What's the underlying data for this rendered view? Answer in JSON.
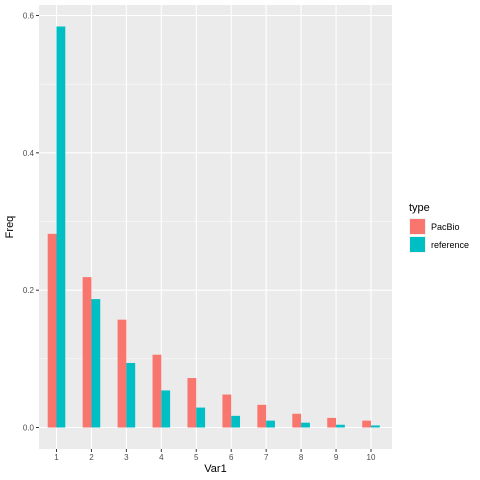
{
  "chart_data": {
    "type": "bar",
    "xlabel": "Var1",
    "ylabel": "Freq",
    "categories": [
      "1",
      "2",
      "3",
      "4",
      "5",
      "6",
      "7",
      "8",
      "9",
      "10"
    ],
    "ylim": [
      0,
      0.6
    ],
    "yticks": [
      0.0,
      0.2,
      0.4,
      0.6
    ],
    "ytick_labels": [
      "0.0",
      "0.2",
      "0.4",
      "0.6"
    ],
    "grid": true,
    "legend": {
      "title": "type",
      "placement": "right"
    },
    "series": [
      {
        "name": "PacBio",
        "color": "#F8766D",
        "values": [
          0.282,
          0.219,
          0.157,
          0.106,
          0.072,
          0.048,
          0.033,
          0.02,
          0.014,
          0.01
        ]
      },
      {
        "name": "reference",
        "color": "#00BFC4",
        "values": [
          0.584,
          0.187,
          0.094,
          0.054,
          0.029,
          0.017,
          0.01,
          0.007,
          0.004,
          0.003
        ]
      }
    ]
  }
}
